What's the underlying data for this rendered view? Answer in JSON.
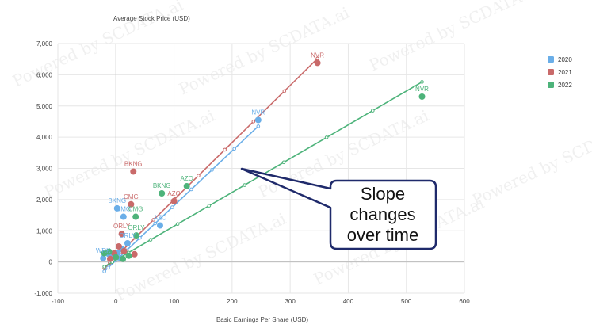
{
  "chart_data": {
    "type": "scatter",
    "title": "Average Stock Price (USD)",
    "xlabel": "Basic Earnings Per Share (USD)",
    "ylabel": "",
    "xlim": [
      -100,
      600
    ],
    "ylim": [
      -1000,
      7000
    ],
    "x_ticks": [
      "-100",
      "0",
      "100",
      "200",
      "300",
      "400",
      "500",
      "600"
    ],
    "y_ticks": [
      "-1,000",
      "0",
      "1,000",
      "2,000",
      "3,000",
      "4,000",
      "5,000",
      "6,000",
      "7,000"
    ],
    "grid": true,
    "legend_position": "right",
    "series": [
      {
        "name": "2020",
        "color": "#6aaee8",
        "points": [
          {
            "x": 245,
            "y": 4550,
            "label": "NVR"
          },
          {
            "x": 2,
            "y": 1720,
            "label": "BKNG"
          },
          {
            "x": 13,
            "y": 1450,
            "label": "CMG"
          },
          {
            "x": 76,
            "y": 1170,
            "label": "AZO"
          },
          {
            "x": 20,
            "y": 600,
            "label": "ORLY"
          },
          {
            "x": -22,
            "y": 120,
            "label": "WRK"
          },
          {
            "x": -12,
            "y": 250
          },
          {
            "x": -5,
            "y": 180
          },
          {
            "x": 3,
            "y": 300
          },
          {
            "x": 8,
            "y": 120
          },
          {
            "x": 10,
            "y": 420
          }
        ],
        "trendline": [
          [
            -20,
            -300
          ],
          [
            245,
            4350
          ]
        ]
      },
      {
        "name": "2021",
        "color": "#c96a6a",
        "points": [
          {
            "x": 347,
            "y": 6380,
            "label": "NVR"
          },
          {
            "x": 30,
            "y": 2900,
            "label": "BKNG"
          },
          {
            "x": 26,
            "y": 1850,
            "label": "CMG"
          },
          {
            "x": 100,
            "y": 1950,
            "label": "AZO"
          },
          {
            "x": 10,
            "y": 900,
            "label": "ORLY"
          },
          {
            "x": 32,
            "y": 250
          },
          {
            "x": -10,
            "y": 100
          },
          {
            "x": 5,
            "y": 500
          },
          {
            "x": 14,
            "y": 350
          },
          {
            "x": -3,
            "y": 280
          }
        ],
        "trendline": [
          [
            -20,
            -200
          ],
          [
            347,
            6520
          ]
        ]
      },
      {
        "name": "2022",
        "color": "#4db37a",
        "points": [
          {
            "x": 527,
            "y": 5300,
            "label": "NVR"
          },
          {
            "x": 122,
            "y": 2430,
            "label": "AZO"
          },
          {
            "x": 79,
            "y": 2200,
            "label": "BKNG"
          },
          {
            "x": 34,
            "y": 1450,
            "label": "CMG"
          },
          {
            "x": 35,
            "y": 850,
            "label": "ORLY"
          },
          {
            "x": -12,
            "y": 330
          },
          {
            "x": 0,
            "y": 150
          },
          {
            "x": 12,
            "y": 100
          },
          {
            "x": 22,
            "y": 200
          },
          {
            "x": -20,
            "y": 280
          }
        ],
        "trendline": [
          [
            -20,
            -150
          ],
          [
            527,
            5770
          ]
        ]
      }
    ],
    "annotations": [
      {
        "text": [
          "Slope",
          "changes",
          "over time"
        ]
      }
    ]
  },
  "watermark": "Powered by SCDATA.ai"
}
